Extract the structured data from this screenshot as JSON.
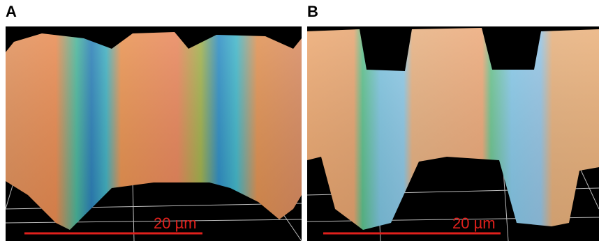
{
  "panels": [
    {
      "label": "A",
      "scale_bar": "20 µm"
    },
    {
      "label": "B",
      "scale_bar": "20 µm"
    }
  ]
}
